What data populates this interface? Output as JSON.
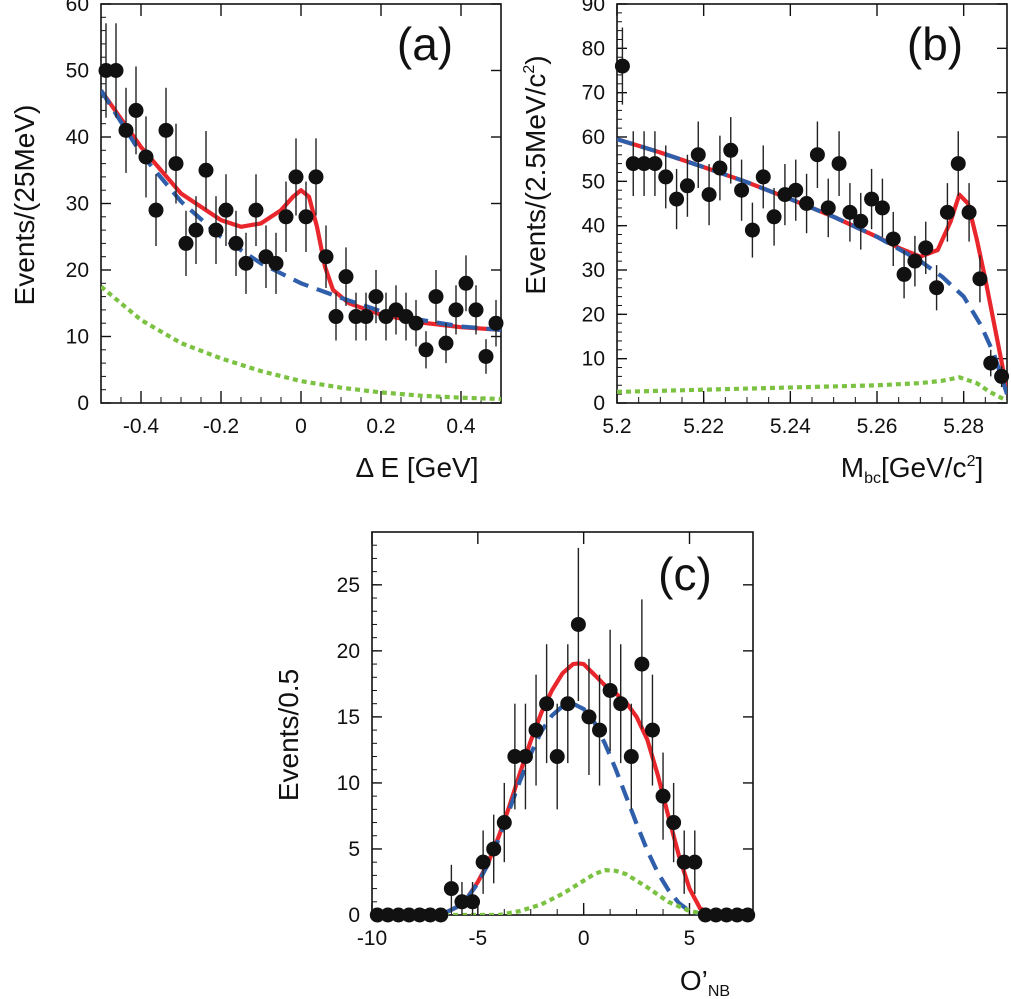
{
  "chart_data": [
    {
      "type": "scatter",
      "panel_label": "(a)",
      "xlabel": "Δ E [GeV]",
      "ylabel": "Events/(25MeV)",
      "xlim": [
        -0.5,
        0.5
      ],
      "ylim": [
        0,
        60
      ],
      "xticks": [
        -0.4,
        -0.2,
        0,
        0.2,
        0.4
      ],
      "xtick_labels": [
        "-0.4",
        "-0.2",
        "0",
        "0.2",
        "0.4"
      ],
      "yticks": [
        0,
        10,
        20,
        30,
        40,
        50,
        60
      ],
      "ytick_labels": [
        "0",
        "10",
        "20",
        "30",
        "40",
        "50",
        "60"
      ],
      "grid": false,
      "points": [
        {
          "x": -0.4875,
          "y": 50,
          "err": 7.1
        },
        {
          "x": -0.4625,
          "y": 50,
          "err": 7.1
        },
        {
          "x": -0.4375,
          "y": 41,
          "err": 6.4
        },
        {
          "x": -0.4125,
          "y": 44,
          "err": 6.6
        },
        {
          "x": -0.3875,
          "y": 37,
          "err": 6.1
        },
        {
          "x": -0.3625,
          "y": 29,
          "err": 5.4
        },
        {
          "x": -0.3375,
          "y": 41,
          "err": 6.4
        },
        {
          "x": -0.3125,
          "y": 36,
          "err": 6.0
        },
        {
          "x": -0.2875,
          "y": 24,
          "err": 4.9
        },
        {
          "x": -0.2625,
          "y": 26,
          "err": 5.1
        },
        {
          "x": -0.2375,
          "y": 35,
          "err": 5.9
        },
        {
          "x": -0.2125,
          "y": 26,
          "err": 5.1
        },
        {
          "x": -0.1875,
          "y": 29,
          "err": 5.4
        },
        {
          "x": -0.1625,
          "y": 24,
          "err": 4.9
        },
        {
          "x": -0.1375,
          "y": 21,
          "err": 4.6
        },
        {
          "x": -0.1125,
          "y": 29,
          "err": 5.4
        },
        {
          "x": -0.0875,
          "y": 22,
          "err": 4.7
        },
        {
          "x": -0.0625,
          "y": 21,
          "err": 4.6
        },
        {
          "x": -0.0375,
          "y": 28,
          "err": 5.3
        },
        {
          "x": -0.0125,
          "y": 34,
          "err": 5.8
        },
        {
          "x": 0.0125,
          "y": 28,
          "err": 5.3
        },
        {
          "x": 0.0375,
          "y": 34,
          "err": 5.8
        },
        {
          "x": 0.0625,
          "y": 22,
          "err": 4.7
        },
        {
          "x": 0.0875,
          "y": 13,
          "err": 3.6
        },
        {
          "x": 0.1125,
          "y": 19,
          "err": 4.4
        },
        {
          "x": 0.1375,
          "y": 13,
          "err": 3.6
        },
        {
          "x": 0.1625,
          "y": 13,
          "err": 3.6
        },
        {
          "x": 0.1875,
          "y": 16,
          "err": 4.0
        },
        {
          "x": 0.2125,
          "y": 13,
          "err": 3.6
        },
        {
          "x": 0.2375,
          "y": 14,
          "err": 3.7
        },
        {
          "x": 0.2625,
          "y": 13,
          "err": 3.6
        },
        {
          "x": 0.2875,
          "y": 12,
          "err": 3.5
        },
        {
          "x": 0.3125,
          "y": 8,
          "err": 2.8
        },
        {
          "x": 0.3375,
          "y": 16,
          "err": 4.0
        },
        {
          "x": 0.3625,
          "y": 9,
          "err": 3.0
        },
        {
          "x": 0.3875,
          "y": 14,
          "err": 3.7
        },
        {
          "x": 0.4125,
          "y": 18,
          "err": 4.2
        },
        {
          "x": 0.4375,
          "y": 14,
          "err": 3.7
        },
        {
          "x": 0.4625,
          "y": 7,
          "err": 2.6
        },
        {
          "x": 0.4875,
          "y": 12,
          "err": 3.5
        }
      ],
      "curves": [
        {
          "style": "solid",
          "color": "#e8262b",
          "x": [
            -0.5,
            -0.4,
            -0.3,
            -0.2,
            -0.15,
            -0.1,
            -0.05,
            -0.02,
            0,
            0.02,
            0.04,
            0.06,
            0.08,
            0.12,
            0.2,
            0.3,
            0.4,
            0.5
          ],
          "y": [
            47,
            38.5,
            31.5,
            27.5,
            26.5,
            27,
            29,
            31,
            32,
            31,
            26.5,
            20.5,
            17,
            15,
            13.3,
            12.1,
            11.4,
            11
          ]
        },
        {
          "style": "dashed",
          "color": "#2f5fab",
          "x": [
            -0.5,
            -0.4,
            -0.3,
            -0.2,
            -0.1,
            0,
            0.1,
            0.2,
            0.3,
            0.4,
            0.5
          ],
          "y": [
            47,
            37.5,
            30.3,
            25,
            21,
            18,
            15.8,
            13.8,
            12.5,
            11.5,
            11
          ]
        },
        {
          "style": "dotted",
          "color": "#7cc242",
          "x": [
            -0.5,
            -0.4,
            -0.3,
            -0.2,
            -0.1,
            0,
            0.1,
            0.2,
            0.3,
            0.4,
            0.5
          ],
          "y": [
            17.5,
            12.5,
            9,
            6.7,
            4.8,
            3.3,
            2.3,
            1.6,
            1.1,
            0.8,
            0.6
          ]
        }
      ]
    },
    {
      "type": "scatter",
      "panel_label": "(b)",
      "xlabel": "M",
      "xlabel_sub": "bc",
      "xlabel_rest": "[GeV/c",
      "xlabel_sup": "2",
      "xlabel_end": "]",
      "ylabel": "Events/(2.5MeV/c",
      "ylabel_sup": "2",
      "ylabel_end": ")",
      "xlim": [
        5.2,
        5.29
      ],
      "ylim": [
        0,
        90
      ],
      "xticks": [
        5.2,
        5.22,
        5.24,
        5.26,
        5.28
      ],
      "xtick_labels": [
        "5.2",
        "5.22",
        "5.24",
        "5.26",
        "5.28"
      ],
      "yticks": [
        0,
        10,
        20,
        30,
        40,
        50,
        60,
        70,
        80,
        90
      ],
      "ytick_labels": [
        "0",
        "10",
        "20",
        "30",
        "40",
        "50",
        "60",
        "70",
        "80",
        "90"
      ],
      "grid": false,
      "points": [
        {
          "x": 5.20125,
          "y": 76,
          "err": 8.7
        },
        {
          "x": 5.20375,
          "y": 54,
          "err": 7.3
        },
        {
          "x": 5.20625,
          "y": 54,
          "err": 7.3
        },
        {
          "x": 5.20875,
          "y": 54,
          "err": 7.3
        },
        {
          "x": 5.21125,
          "y": 51,
          "err": 7.1
        },
        {
          "x": 5.21375,
          "y": 46,
          "err": 6.8
        },
        {
          "x": 5.21625,
          "y": 49,
          "err": 7.0
        },
        {
          "x": 5.21875,
          "y": 56,
          "err": 7.5
        },
        {
          "x": 5.22125,
          "y": 47,
          "err": 6.9
        },
        {
          "x": 5.22375,
          "y": 53,
          "err": 7.3
        },
        {
          "x": 5.22625,
          "y": 57,
          "err": 7.5
        },
        {
          "x": 5.22875,
          "y": 48,
          "err": 6.9
        },
        {
          "x": 5.23125,
          "y": 39,
          "err": 6.2
        },
        {
          "x": 5.23375,
          "y": 51,
          "err": 7.1
        },
        {
          "x": 5.23625,
          "y": 42,
          "err": 6.5
        },
        {
          "x": 5.23875,
          "y": 47,
          "err": 6.9
        },
        {
          "x": 5.24125,
          "y": 48,
          "err": 6.9
        },
        {
          "x": 5.24375,
          "y": 45,
          "err": 6.7
        },
        {
          "x": 5.24625,
          "y": 56,
          "err": 7.5
        },
        {
          "x": 5.24875,
          "y": 44,
          "err": 6.6
        },
        {
          "x": 5.25125,
          "y": 54,
          "err": 7.3
        },
        {
          "x": 5.25375,
          "y": 43,
          "err": 6.6
        },
        {
          "x": 5.25625,
          "y": 41,
          "err": 6.4
        },
        {
          "x": 5.25875,
          "y": 46,
          "err": 6.8
        },
        {
          "x": 5.26125,
          "y": 44,
          "err": 6.6
        },
        {
          "x": 5.26375,
          "y": 37,
          "err": 6.1
        },
        {
          "x": 5.26625,
          "y": 29,
          "err": 5.4
        },
        {
          "x": 5.26875,
          "y": 32,
          "err": 5.7
        },
        {
          "x": 5.27125,
          "y": 35,
          "err": 5.9
        },
        {
          "x": 5.27375,
          "y": 26,
          "err": 5.1
        },
        {
          "x": 5.27625,
          "y": 43,
          "err": 6.6
        },
        {
          "x": 5.27875,
          "y": 54,
          "err": 7.3
        },
        {
          "x": 5.28125,
          "y": 43,
          "err": 6.6
        },
        {
          "x": 5.28375,
          "y": 28,
          "err": 5.3
        },
        {
          "x": 5.28625,
          "y": 9,
          "err": 3.0
        },
        {
          "x": 5.28875,
          "y": 6,
          "err": 2.4
        }
      ],
      "curves": [
        {
          "style": "solid",
          "color": "#e8262b",
          "x": [
            5.2,
            5.21,
            5.22,
            5.23,
            5.24,
            5.25,
            5.26,
            5.265,
            5.27,
            5.274,
            5.277,
            5.279,
            5.281,
            5.283,
            5.285,
            5.287,
            5.289,
            5.29
          ],
          "y": [
            59.5,
            56.5,
            53.2,
            49.8,
            46,
            42,
            37.5,
            35,
            33,
            34.5,
            41,
            47,
            45,
            37,
            28,
            18,
            8,
            2
          ]
        },
        {
          "style": "dashed",
          "color": "#2f5fab",
          "x": [
            5.2,
            5.21,
            5.22,
            5.23,
            5.24,
            5.25,
            5.26,
            5.27,
            5.275,
            5.28,
            5.284,
            5.287,
            5.29
          ],
          "y": [
            59.5,
            56.5,
            53.2,
            49.8,
            46,
            42,
            37.5,
            32,
            28.5,
            24,
            17.5,
            11,
            2
          ]
        },
        {
          "style": "dotted",
          "color": "#7cc242",
          "x": [
            5.2,
            5.22,
            5.24,
            5.26,
            5.27,
            5.275,
            5.279,
            5.283,
            5.286,
            5.29
          ],
          "y": [
            2.5,
            3,
            3.5,
            4,
            4.5,
            5,
            5.8,
            4.5,
            2.5,
            0.5
          ]
        }
      ]
    },
    {
      "type": "scatter",
      "panel_label": "(c)",
      "xlabel": "O’",
      "xlabel_sub": "NB",
      "ylabel": "Events/0.5",
      "xlim": [
        -10,
        8
      ],
      "ylim": [
        0,
        29
      ],
      "xticks": [
        -10,
        -5,
        0,
        5
      ],
      "xtick_labels": [
        "-10",
        "-5",
        "0",
        "5"
      ],
      "yticks": [
        0,
        5,
        10,
        15,
        20,
        25
      ],
      "ytick_labels": [
        "0",
        "5",
        "10",
        "15",
        "20",
        "25"
      ],
      "grid": false,
      "points": [
        {
          "x": -9.75,
          "y": 0,
          "err": 0
        },
        {
          "x": -9.25,
          "y": 0,
          "err": 0
        },
        {
          "x": -8.75,
          "y": 0,
          "err": 0
        },
        {
          "x": -8.25,
          "y": 0,
          "err": 0
        },
        {
          "x": -7.75,
          "y": 0,
          "err": 0
        },
        {
          "x": -7.25,
          "y": 0,
          "err": 0
        },
        {
          "x": -6.75,
          "y": 0,
          "err": 0
        },
        {
          "x": -6.25,
          "y": 2,
          "err": 1.8
        },
        {
          "x": -5.75,
          "y": 1,
          "err": 1.5
        },
        {
          "x": -5.25,
          "y": 1,
          "err": 1.5
        },
        {
          "x": -4.75,
          "y": 4,
          "err": 2.4
        },
        {
          "x": -4.25,
          "y": 5,
          "err": 2.6
        },
        {
          "x": -3.75,
          "y": 7,
          "err": 3.0
        },
        {
          "x": -3.25,
          "y": 12,
          "err": 4.0
        },
        {
          "x": -2.75,
          "y": 12,
          "err": 4.0
        },
        {
          "x": -2.25,
          "y": 14,
          "err": 4.2
        },
        {
          "x": -1.75,
          "y": 16,
          "err": 4.5
        },
        {
          "x": -1.25,
          "y": 12,
          "err": 4.0
        },
        {
          "x": -0.75,
          "y": 16,
          "err": 4.5
        },
        {
          "x": -0.25,
          "y": 22,
          "err": 5.8
        },
        {
          "x": 0.25,
          "y": 15,
          "err": 4.4
        },
        {
          "x": 0.75,
          "y": 14,
          "err": 4.2
        },
        {
          "x": 1.25,
          "y": 17,
          "err": 4.6
        },
        {
          "x": 1.75,
          "y": 16,
          "err": 4.5
        },
        {
          "x": 2.25,
          "y": 12,
          "err": 4.0
        },
        {
          "x": 2.75,
          "y": 19,
          "err": 4.9
        },
        {
          "x": 3.25,
          "y": 14,
          "err": 4.2
        },
        {
          "x": 3.75,
          "y": 9,
          "err": 3.3
        },
        {
          "x": 4.25,
          "y": 7,
          "err": 3.0
        },
        {
          "x": 4.75,
          "y": 4,
          "err": 2.4
        },
        {
          "x": 5.25,
          "y": 4,
          "err": 2.4
        },
        {
          "x": 5.75,
          "y": 0,
          "err": 0
        },
        {
          "x": 6.25,
          "y": 0,
          "err": 0
        },
        {
          "x": 6.75,
          "y": 0,
          "err": 0
        },
        {
          "x": 7.25,
          "y": 0,
          "err": 0
        },
        {
          "x": 7.75,
          "y": 0,
          "err": 0
        }
      ],
      "curves": [
        {
          "style": "solid",
          "color": "#e8262b",
          "x": [
            -10,
            -7,
            -6.5,
            -6,
            -5.5,
            -5,
            -4.5,
            -4,
            -3.5,
            -3,
            -2.5,
            -2,
            -1.5,
            -1,
            -0.5,
            -0.25,
            0,
            0.5,
            1,
            1.5,
            2,
            2.5,
            3,
            3.5,
            4,
            4.5,
            5,
            5.5,
            6,
            7,
            8
          ],
          "y": [
            0,
            0,
            0.2,
            0.6,
            1.3,
            2.5,
            4,
            6,
            8.3,
            10.8,
            13.2,
            15.3,
            17,
            18.3,
            19,
            19.05,
            19,
            18.2,
            17.4,
            16.8,
            16.1,
            15,
            13.3,
            10.6,
            7.5,
            4.5,
            2,
            0.5,
            0.1,
            0,
            0
          ]
        },
        {
          "style": "dashed",
          "color": "#2f5fab",
          "x": [
            -10,
            -7,
            -6.5,
            -6,
            -5.5,
            -5,
            -4.5,
            -4,
            -3.5,
            -3,
            -2.5,
            -2,
            -1.5,
            -1,
            -0.5,
            0,
            0.5,
            1,
            1.5,
            2,
            2.5,
            3,
            3.5,
            4,
            4.5,
            5,
            5.5,
            6,
            8
          ],
          "y": [
            0,
            0,
            0.2,
            0.6,
            1.3,
            2.4,
            3.9,
            5.8,
            8,
            10.2,
            12.2,
            13.9,
            15.1,
            15.8,
            16,
            15.6,
            14.6,
            13,
            11.1,
            9,
            6.9,
            4.9,
            3.2,
            1.9,
            0.9,
            0.3,
            0.1,
            0,
            0
          ]
        },
        {
          "style": "dotted",
          "color": "#7cc242",
          "x": [
            -10,
            -4,
            -3,
            -2,
            -1,
            0,
            0.5,
            1,
            1.5,
            2,
            3,
            4,
            5,
            6,
            8
          ],
          "y": [
            0,
            0,
            0.3,
            0.8,
            1.6,
            2.6,
            3.1,
            3.4,
            3.35,
            3.1,
            2.1,
            1,
            0.3,
            0,
            0
          ]
        }
      ]
    }
  ]
}
